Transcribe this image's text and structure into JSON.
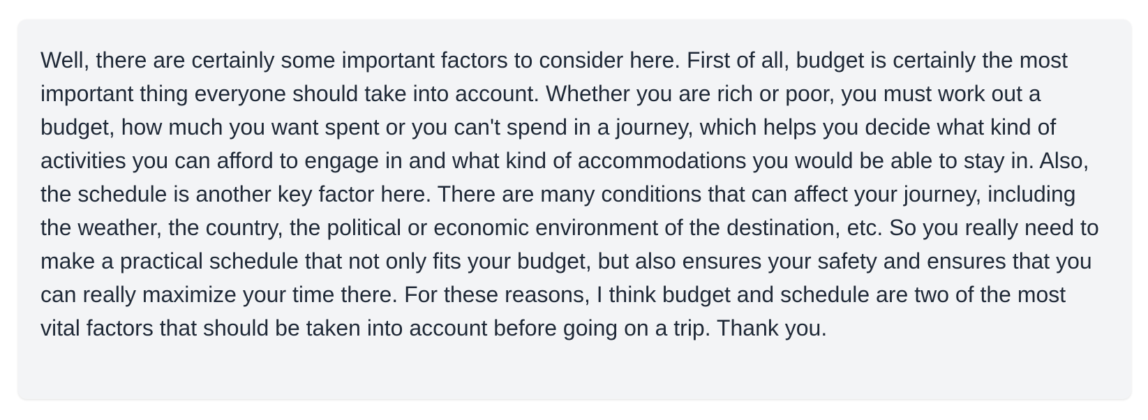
{
  "response": {
    "text": "Well, there are certainly some important factors to consider here. First of all, budget is certainly the most important thing everyone should take into account. Whether you are rich or poor, you must work out a budget, how much you want spent or you can't spend in a journey, which helps you decide what kind of activities you can afford to engage in and what kind of accommodations you would be able to stay in. Also, the schedule is another key factor here. There are many conditions that can affect your journey, including the weather, the country, the political or economic environment of the destination, etc. So you really need to make a practical schedule that not only fits your budget, but also ensures your safety and ensures that you can really maximize your time there. For these reasons, I think budget and schedule are two of the most vital factors that should be taken into account before going on a trip. Thank you."
  },
  "colors": {
    "card_background": "#f3f4f6",
    "text": "#1f2937"
  }
}
